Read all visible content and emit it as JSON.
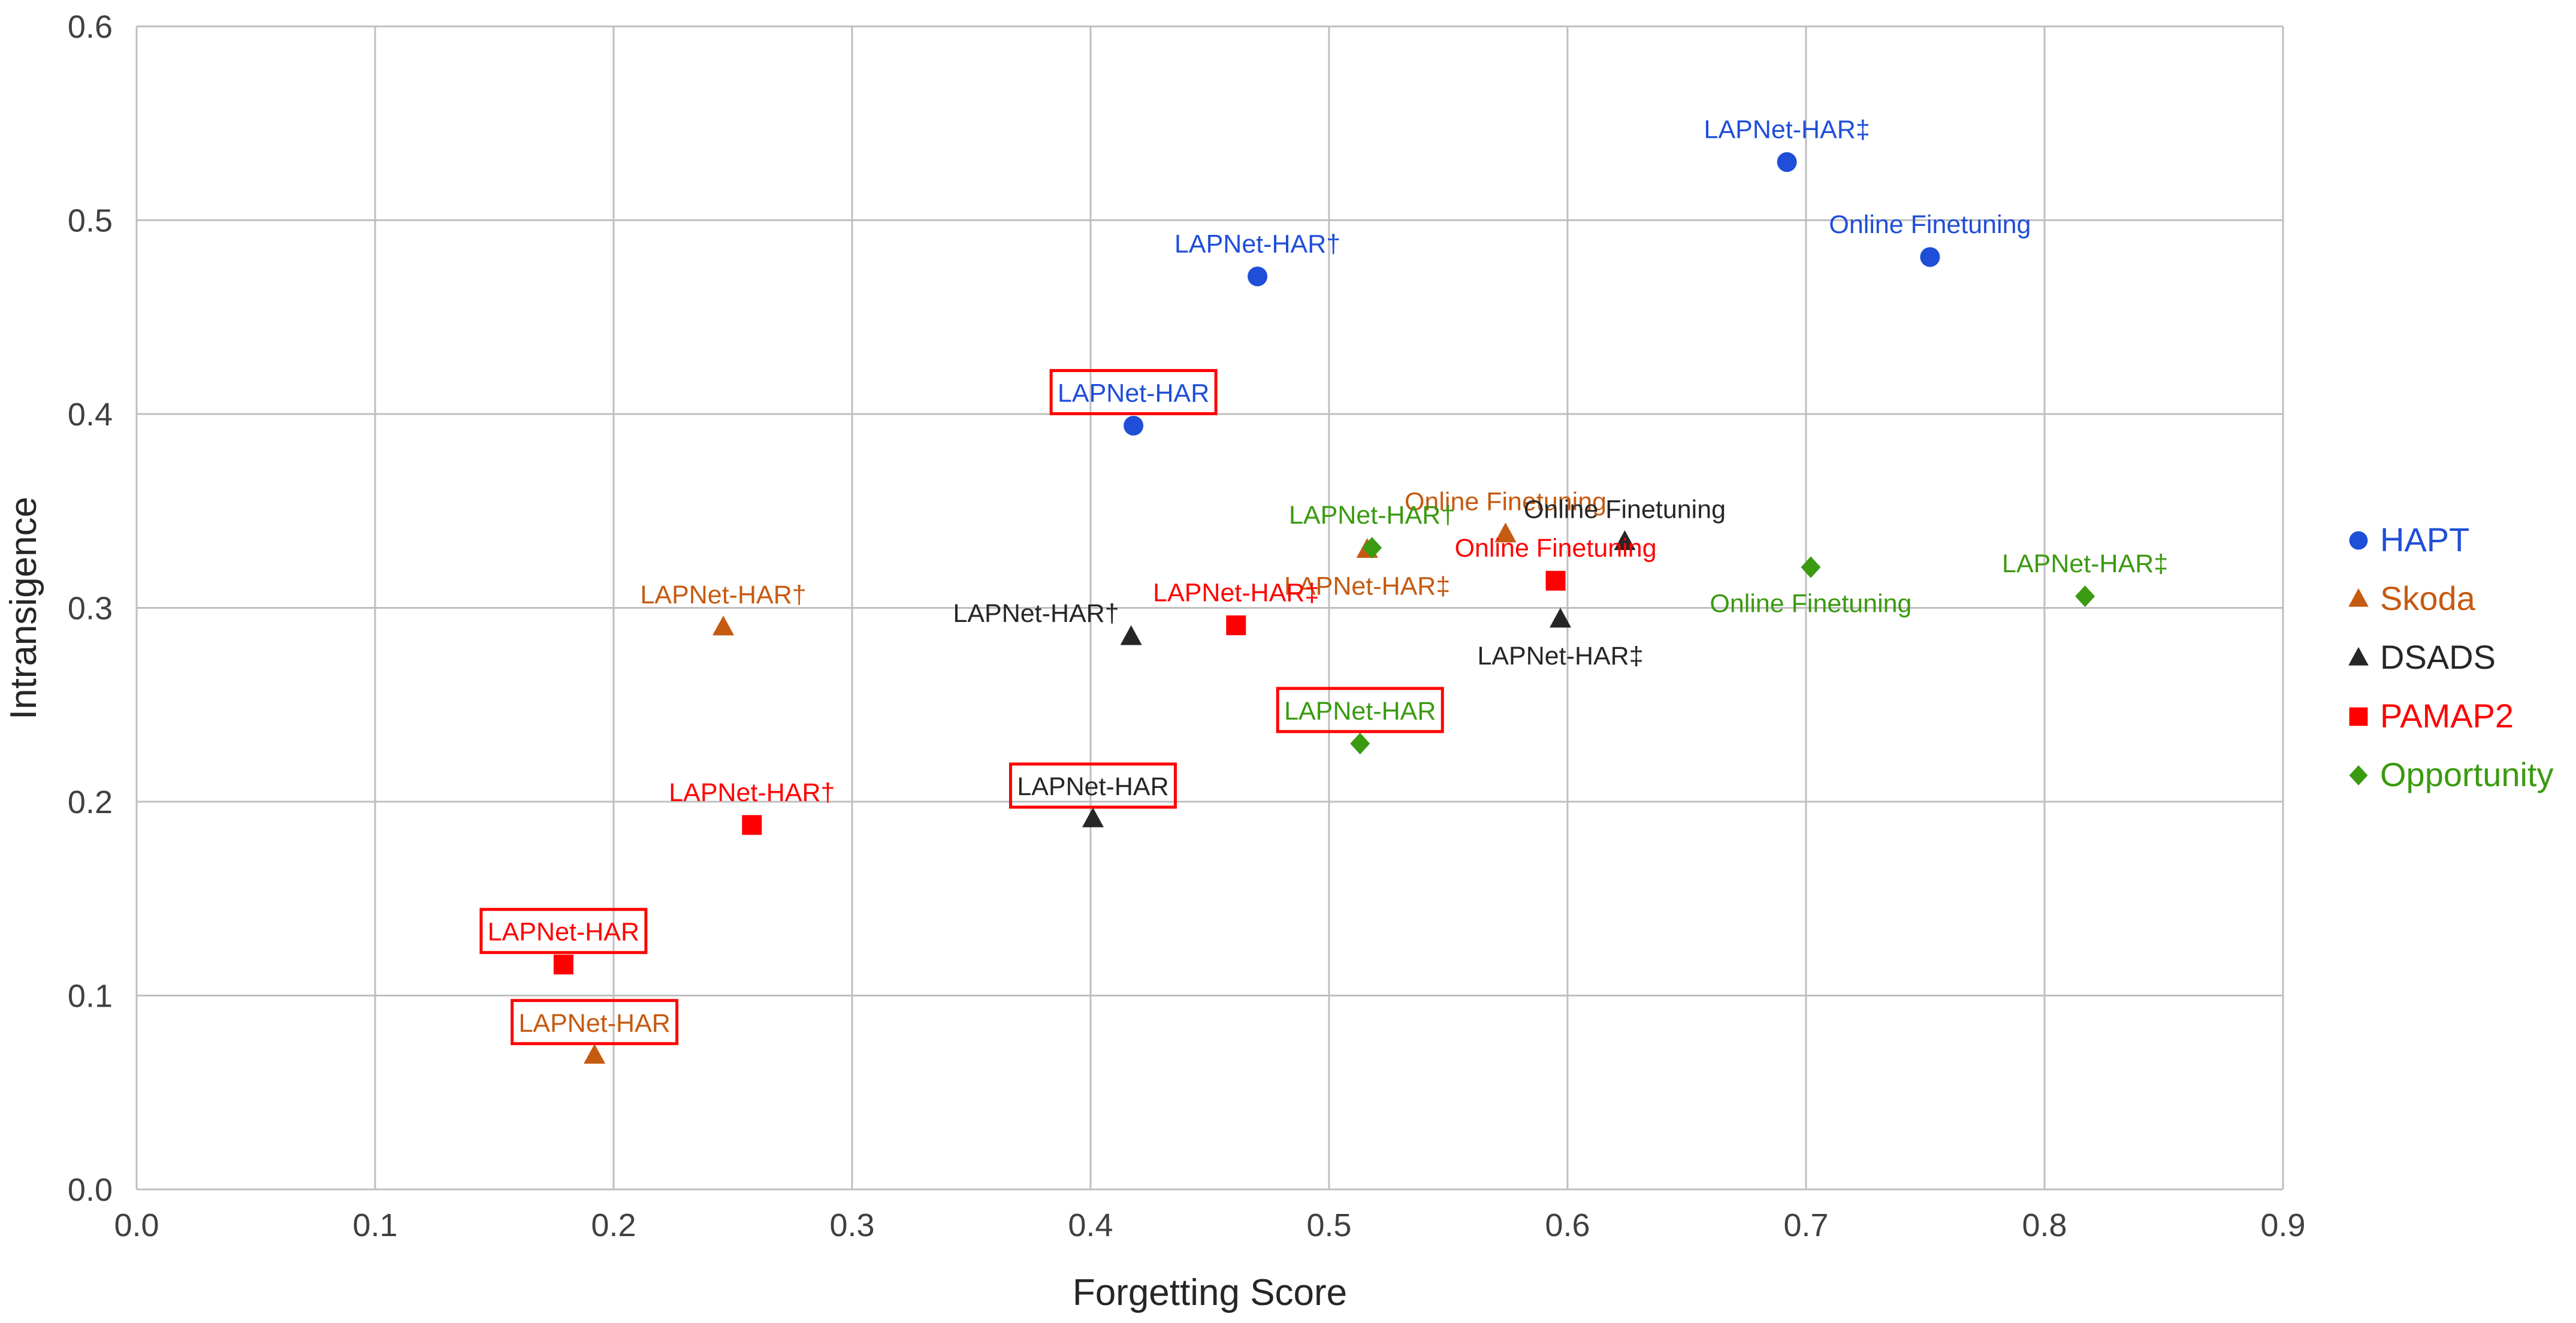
{
  "chart_data": {
    "type": "scatter",
    "xlabel": "Forgetting Score",
    "ylabel": "Intransigence",
    "xlim": [
      0,
      0.9
    ],
    "ylim": [
      0,
      0.6
    ],
    "xticks": [
      "0.0",
      "0.1",
      "0.2",
      "0.3",
      "0.4",
      "0.5",
      "0.6",
      "0.7",
      "0.8",
      "0.9"
    ],
    "yticks": [
      "0.0",
      "0.1",
      "0.2",
      "0.3",
      "0.4",
      "0.5",
      "0.6"
    ],
    "grid": true,
    "legend_position": "right",
    "series": [
      {
        "name": "HAPT",
        "color": "#1F4ED8",
        "marker": "circle",
        "points": [
          {
            "label": "LAPNet-HAR",
            "x": 0.418,
            "y": 0.394,
            "boxed": true,
            "label_pos": "above"
          },
          {
            "label": "LAPNet-HAR†",
            "x": 0.47,
            "y": 0.471,
            "boxed": false,
            "label_pos": "above"
          },
          {
            "label": "LAPNet-HAR‡",
            "x": 0.692,
            "y": 0.53,
            "boxed": false,
            "label_pos": "above"
          },
          {
            "label": "Online Finetuning",
            "x": 0.752,
            "y": 0.481,
            "boxed": false,
            "label_pos": "above"
          }
        ]
      },
      {
        "name": "Skoda",
        "color": "#C55A11",
        "marker": "triangle",
        "points": [
          {
            "label": "LAPNet-HAR",
            "x": 0.192,
            "y": 0.069,
            "boxed": true,
            "label_pos": "above"
          },
          {
            "label": "LAPNet-HAR†",
            "x": 0.246,
            "y": 0.29,
            "boxed": false,
            "label_pos": "above"
          },
          {
            "label": "LAPNet-HAR‡",
            "x": 0.516,
            "y": 0.33,
            "boxed": false,
            "label_pos": "below"
          },
          {
            "label": "Online Finetuning",
            "x": 0.574,
            "y": 0.338,
            "boxed": false,
            "label_pos": "above"
          }
        ]
      },
      {
        "name": "DSADS",
        "color": "#262626",
        "marker": "triangle",
        "points": [
          {
            "label": "LAPNet-HAR",
            "x": 0.401,
            "y": 0.191,
            "boxed": true,
            "label_pos": "above"
          },
          {
            "label": "LAPNet-HAR†",
            "x": 0.417,
            "y": 0.285,
            "boxed": false,
            "label_pos": "above-left"
          },
          {
            "label": "LAPNet-HAR‡",
            "x": 0.597,
            "y": 0.294,
            "boxed": false,
            "label_pos": "below"
          },
          {
            "label": "Online Finetuning",
            "x": 0.624,
            "y": 0.334,
            "boxed": false,
            "label_pos": "above"
          }
        ]
      },
      {
        "name": "PAMAP2",
        "color": "#FF0000",
        "marker": "square",
        "points": [
          {
            "label": "LAPNet-HAR",
            "x": 0.179,
            "y": 0.116,
            "boxed": true,
            "label_pos": "above"
          },
          {
            "label": "LAPNet-HAR†",
            "x": 0.258,
            "y": 0.188,
            "boxed": false,
            "label_pos": "above"
          },
          {
            "label": "LAPNet-HAR‡",
            "x": 0.461,
            "y": 0.291,
            "boxed": false,
            "label_pos": "above"
          },
          {
            "label": "Online Finetuning",
            "x": 0.595,
            "y": 0.314,
            "boxed": false,
            "label_pos": "above"
          }
        ]
      },
      {
        "name": "Opportunity",
        "color": "#3A9A10",
        "marker": "diamond",
        "points": [
          {
            "label": "LAPNet-HAR",
            "x": 0.513,
            "y": 0.23,
            "boxed": true,
            "label_pos": "above"
          },
          {
            "label": "LAPNet-HAR†",
            "x": 0.518,
            "y": 0.331,
            "boxed": false,
            "label_pos": "above"
          },
          {
            "label": "LAPNet-HAR‡",
            "x": 0.817,
            "y": 0.306,
            "boxed": false,
            "label_pos": "above"
          },
          {
            "label": "Online Finetuning",
            "x": 0.702,
            "y": 0.321,
            "boxed": false,
            "label_pos": "below"
          }
        ]
      }
    ]
  }
}
